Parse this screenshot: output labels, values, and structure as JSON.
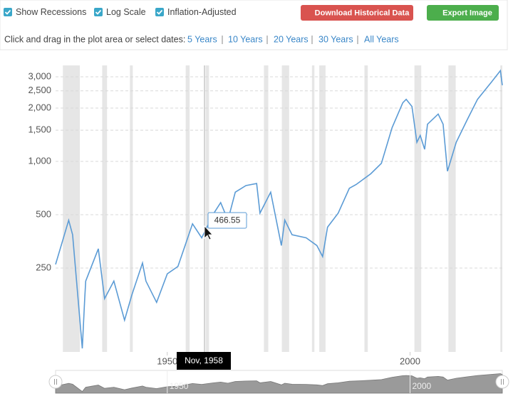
{
  "controls": {
    "checkboxes": [
      "Show Recessions",
      "Log Scale",
      "Inflation-Adjusted"
    ],
    "buttons": [
      "Download Historical Data",
      "Export Image"
    ],
    "range_prompt": "Click and drag in the plot area or select dates:",
    "range_links": [
      "5 Years",
      "10 Years",
      "20 Years",
      "30 Years",
      "All Years"
    ]
  },
  "chart_data": {
    "type": "line",
    "log_scale": true,
    "grid": true,
    "xlim": [
      1927,
      2019
    ],
    "xticks": [
      1950,
      2000
    ],
    "ylim": [
      84,
      3480
    ],
    "yticks": [
      250,
      500,
      {
        "value": 1000,
        "label": "1,000"
      },
      {
        "value": 1500,
        "label": "1,500"
      },
      {
        "value": 2000,
        "label": "2,000"
      },
      {
        "value": 2500,
        "label": "2,500"
      },
      {
        "value": 3000,
        "label": "3,000"
      }
    ],
    "recession_color": "#e6e6e6",
    "recessions": [
      [
        1928.5,
        1932
      ],
      [
        1936.6,
        1937.6
      ],
      [
        1942.3,
        1942.9
      ],
      [
        1953.8,
        1954.6
      ],
      [
        1957.9,
        1958.6
      ],
      [
        1969.9,
        1970.8
      ],
      [
        1973.6,
        1975.1
      ],
      [
        1979.8,
        1980.3
      ],
      [
        1981.3,
        1982.6
      ],
      [
        1990.6,
        1991.3
      ],
      [
        2000.9,
        2002.3
      ],
      [
        2007.9,
        2009.4
      ],
      [
        2018.6,
        2019
      ]
    ],
    "series": [
      {
        "color": "#5b9bd5",
        "x": [
          1927,
          1929.7,
          1930.5,
          1932.5,
          1933,
          1933.2,
          1935.8,
          1937.1,
          1939,
          1941.2,
          1942.7,
          1944.9,
          1945.6,
          1947.8,
          1950,
          1952.2,
          1955.2,
          1957.1,
          1958.9,
          1959.6,
          1961,
          1962.5,
          1964,
          1966.2,
          1968.4,
          1969.1,
          1971.3,
          1973.5,
          1974.2,
          1975.7,
          1978.6,
          1980.8,
          1982,
          1983,
          1985.2,
          1987.5,
          1988.9,
          1991.9,
          1994.1,
          1996.3,
          1998.5,
          1999.2,
          2000.4,
          2001.4,
          2002.1,
          2003,
          2003.6,
          2005.8,
          2006.8,
          2007.7,
          2009.5,
          2011.7,
          2013.9,
          2016.8,
          2018.6,
          2019
        ],
        "values": [
          262,
          465,
          385,
          88,
          168,
          211,
          321,
          168,
          211,
          127,
          176,
          267,
          211,
          160,
          232,
          255,
          444,
          370,
          466.55,
          510,
          585,
          466,
          670,
          730,
          750,
          510,
          670,
          335,
          466,
          385,
          370,
          335,
          290,
          425,
          510,
          705,
          740,
          850,
          975,
          1550,
          2140,
          2240,
          2040,
          1280,
          1400,
          1170,
          1620,
          1850,
          1620,
          880,
          1280,
          1700,
          2240,
          2810,
          3250,
          2690
        ]
      }
    ],
    "tooltip": {
      "date": "Nov, 1958",
      "value": 466.55
    }
  }
}
